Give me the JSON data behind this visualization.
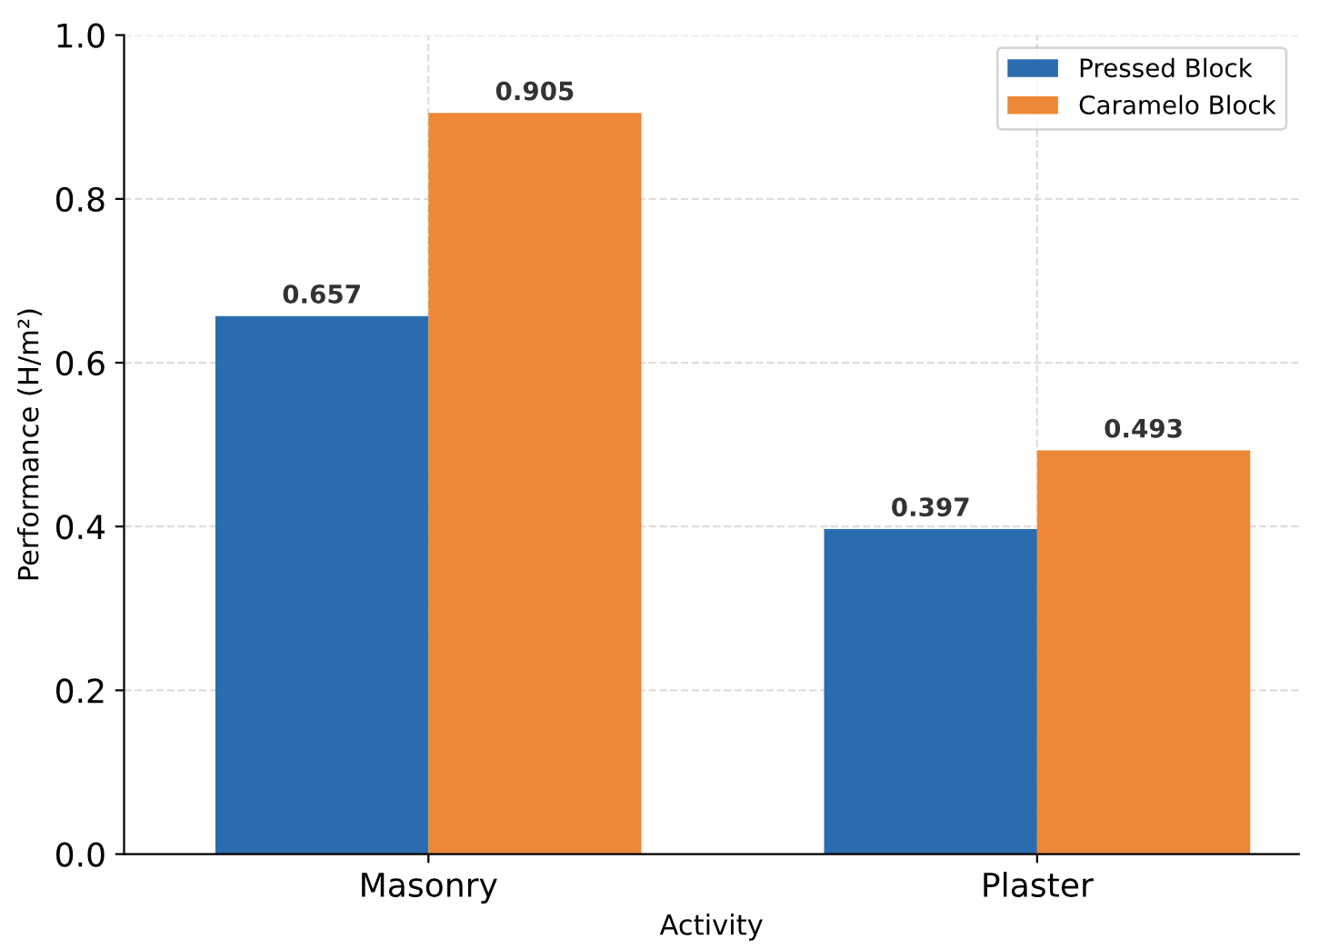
{
  "chart_data": {
    "type": "bar",
    "xlabel": "Activity",
    "ylabel": "Performance (H/m²)",
    "categories": [
      "Masonry",
      "Plaster"
    ],
    "series": [
      {
        "name": "Pressed Block",
        "color": "#2b6cb0",
        "values": [
          0.657,
          0.397
        ]
      },
      {
        "name": "Caramelo Block",
        "color": "#ed8936",
        "values": [
          0.905,
          0.493
        ]
      }
    ],
    "ylim": [
      0,
      1.0
    ],
    "yticks": [
      {
        "value": 0,
        "label": "0.0"
      },
      {
        "value": 0.2,
        "label": "0.2"
      },
      {
        "value": 0.4,
        "label": "0.4"
      },
      {
        "value": 0.6,
        "label": "0.6"
      },
      {
        "value": 0.8,
        "label": "0.8"
      },
      {
        "value": 1.0,
        "label": "1.0"
      }
    ],
    "grid": true,
    "legend": "top right",
    "data_labels": true
  }
}
